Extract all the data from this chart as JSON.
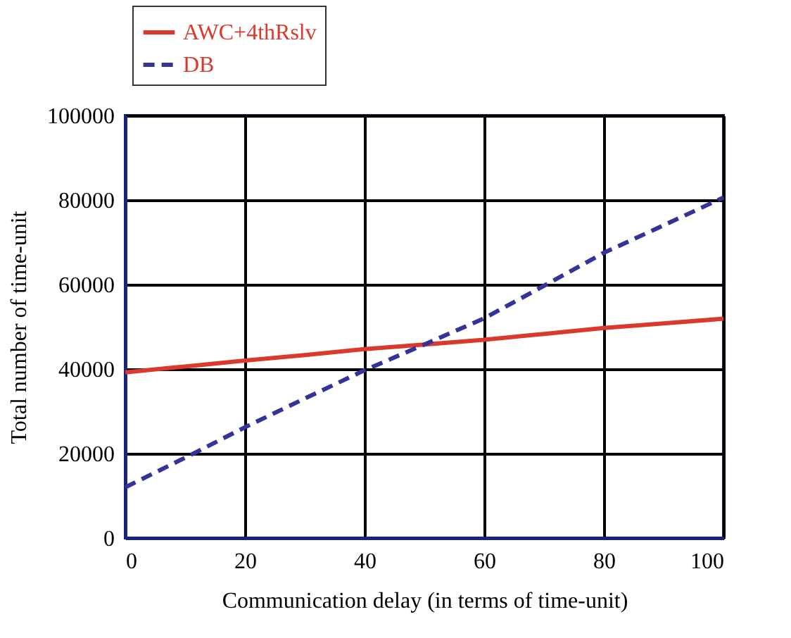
{
  "chart_data": {
    "type": "line",
    "xlabel": "Communication delay (in terms of time-unit)",
    "ylabel": "Total number of time-unit",
    "series": [
      {
        "name": "AWC+4thRslv",
        "color": "#d93a2b",
        "line_style": "solid",
        "x": [
          0,
          10,
          20,
          30,
          40,
          50,
          60,
          70,
          80,
          90,
          100
        ],
        "values": [
          39200,
          40600,
          42000,
          43300,
          44700,
          45800,
          46900,
          48300,
          49700,
          50800,
          51900
        ]
      },
      {
        "name": "DB",
        "color": "#333399",
        "line_style": "dashed",
        "x": [
          0,
          10,
          20,
          30,
          40,
          50,
          60,
          70,
          80,
          90,
          100
        ],
        "values": [
          12000,
          19000,
          26200,
          33000,
          39700,
          45800,
          52000,
          59700,
          67500,
          74000,
          80600
        ]
      }
    ],
    "xlim": [
      0,
      100
    ],
    "xticks": [
      0,
      20,
      40,
      60,
      80,
      100
    ],
    "ylim": [
      0,
      100000
    ],
    "yticks": [
      0,
      20000,
      40000,
      60000,
      80000,
      100000
    ],
    "grid": true,
    "legend": "top left",
    "marker": "none"
  }
}
